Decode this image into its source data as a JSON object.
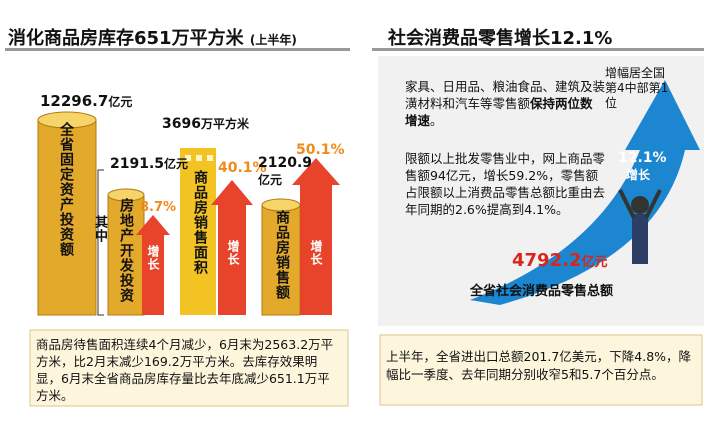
{
  "left": {
    "title": "消化商品房库存651万平方米",
    "title_note": "(上半年)",
    "items": [
      {
        "value": "12296.7",
        "unit": "亿元",
        "label": "全省固定资产投资额"
      },
      {
        "value": "2191.5",
        "unit": "亿元",
        "label": "房地产开发投资",
        "growth": "8.7%",
        "growth_label": "增长"
      },
      {
        "value": "3696",
        "unit": "万平方米",
        "label": "商品房销售面积",
        "growth": "40.1%",
        "growth_label": "增长"
      },
      {
        "value": "2120.9",
        "unit": "亿元",
        "label": "商品房销售额",
        "growth": "50.1%",
        "growth_label": "增长"
      }
    ],
    "bracket_label": "其中",
    "footnote": "商品房待售面积连续4个月减少，6月末为2563.2万平方米，比2月末减少169.2万平方米。去库存效果明显，6月末全省商品房库存量比去年底减少651.1万平方米。"
  },
  "right": {
    "title": "社会消费品零售增长12.1%",
    "paragraph1": {
      "text": "家具、日用品、粮油食品、建筑及装潢材料和汽车等零售额",
      "bold": "保持两位数增速",
      "end": "。"
    },
    "paragraph2": "限额以上批发零售业中，网上商品零售额94亿元，增长59.2%，零售额占限额以上消费品零售总额比重由去年同期的2.6%提高到4.1%。",
    "rank": "增幅居全国第4中部第1位",
    "arrow_value": "12.1%",
    "arrow_label": "增长",
    "total_value": "4792.2",
    "total_unit": "亿元",
    "total_label": "全省社会消费品零售总额",
    "footnote": "上半年，全省进出口总额201.7亿美元，下降4.8%，降幅比一季度、去年同期分别收窄5和5.7个百分点。"
  }
}
